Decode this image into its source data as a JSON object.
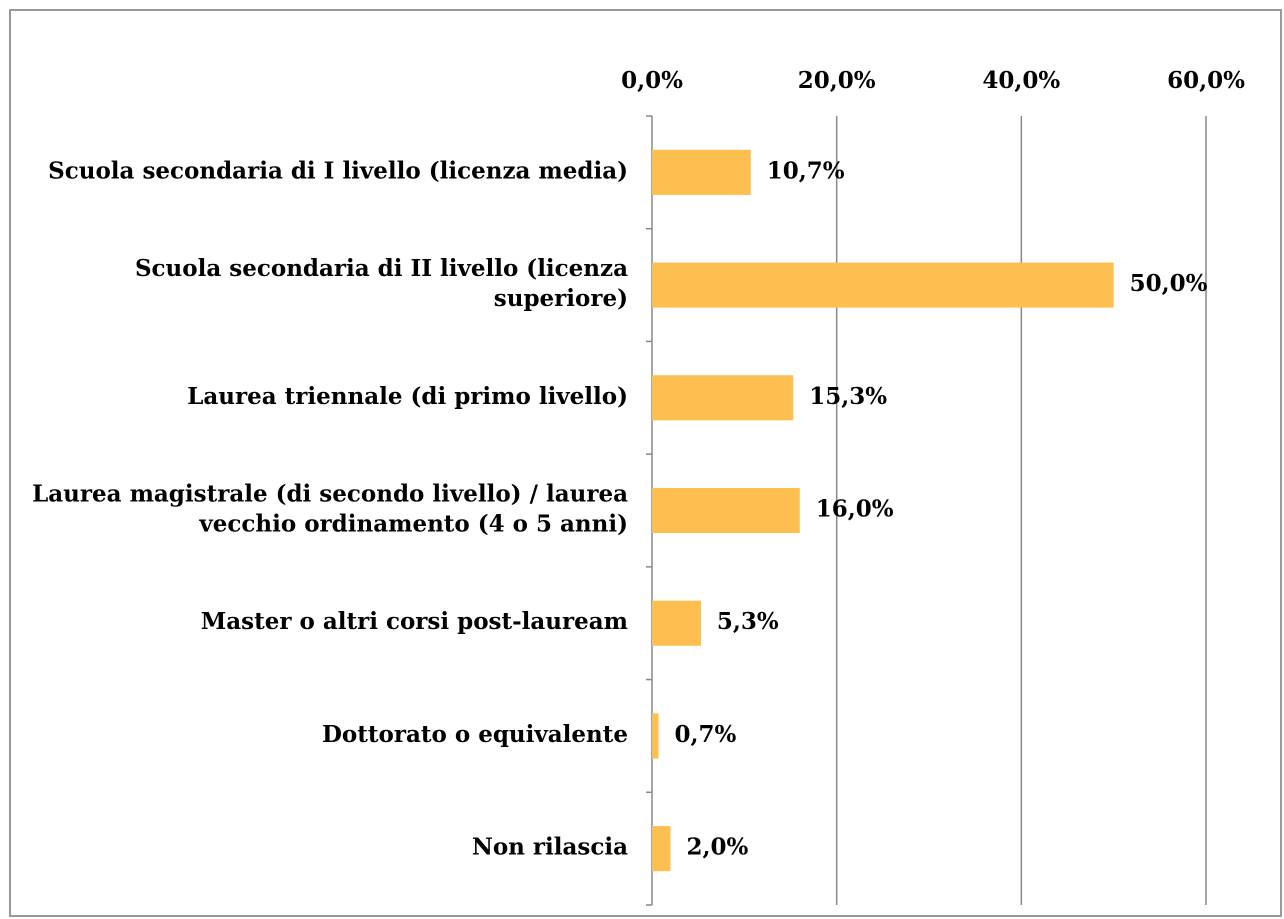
{
  "chart_data": {
    "type": "barh",
    "categories": [
      "Scuola secondaria di I livello (licenza media)",
      "Scuola secondaria di II livello (licenza superiore)",
      "Laurea triennale (di primo livello)",
      "Laurea magistrale (di secondo livello) / laurea vecchio ordinamento (4 o 5 anni)",
      "Master o altri corsi post-lauream",
      "Dottorato o equivalente",
      "Non rilascia"
    ],
    "values": [
      10.7,
      50.0,
      15.3,
      16.0,
      5.3,
      0.7,
      2.0
    ],
    "value_labels": [
      "10,7%",
      "50,0%",
      "15,3%",
      "16,0%",
      "5,3%",
      "0,7%",
      "2,0%"
    ],
    "color": "#fdbf50",
    "xlim": [
      0,
      60
    ],
    "xticks": [
      {
        "value": 0,
        "label": "0,0%"
      },
      {
        "value": 20,
        "label": "20,0%"
      },
      {
        "value": 40,
        "label": "40,0%"
      },
      {
        "value": 60,
        "label": "60,0%"
      }
    ],
    "grid": true
  }
}
